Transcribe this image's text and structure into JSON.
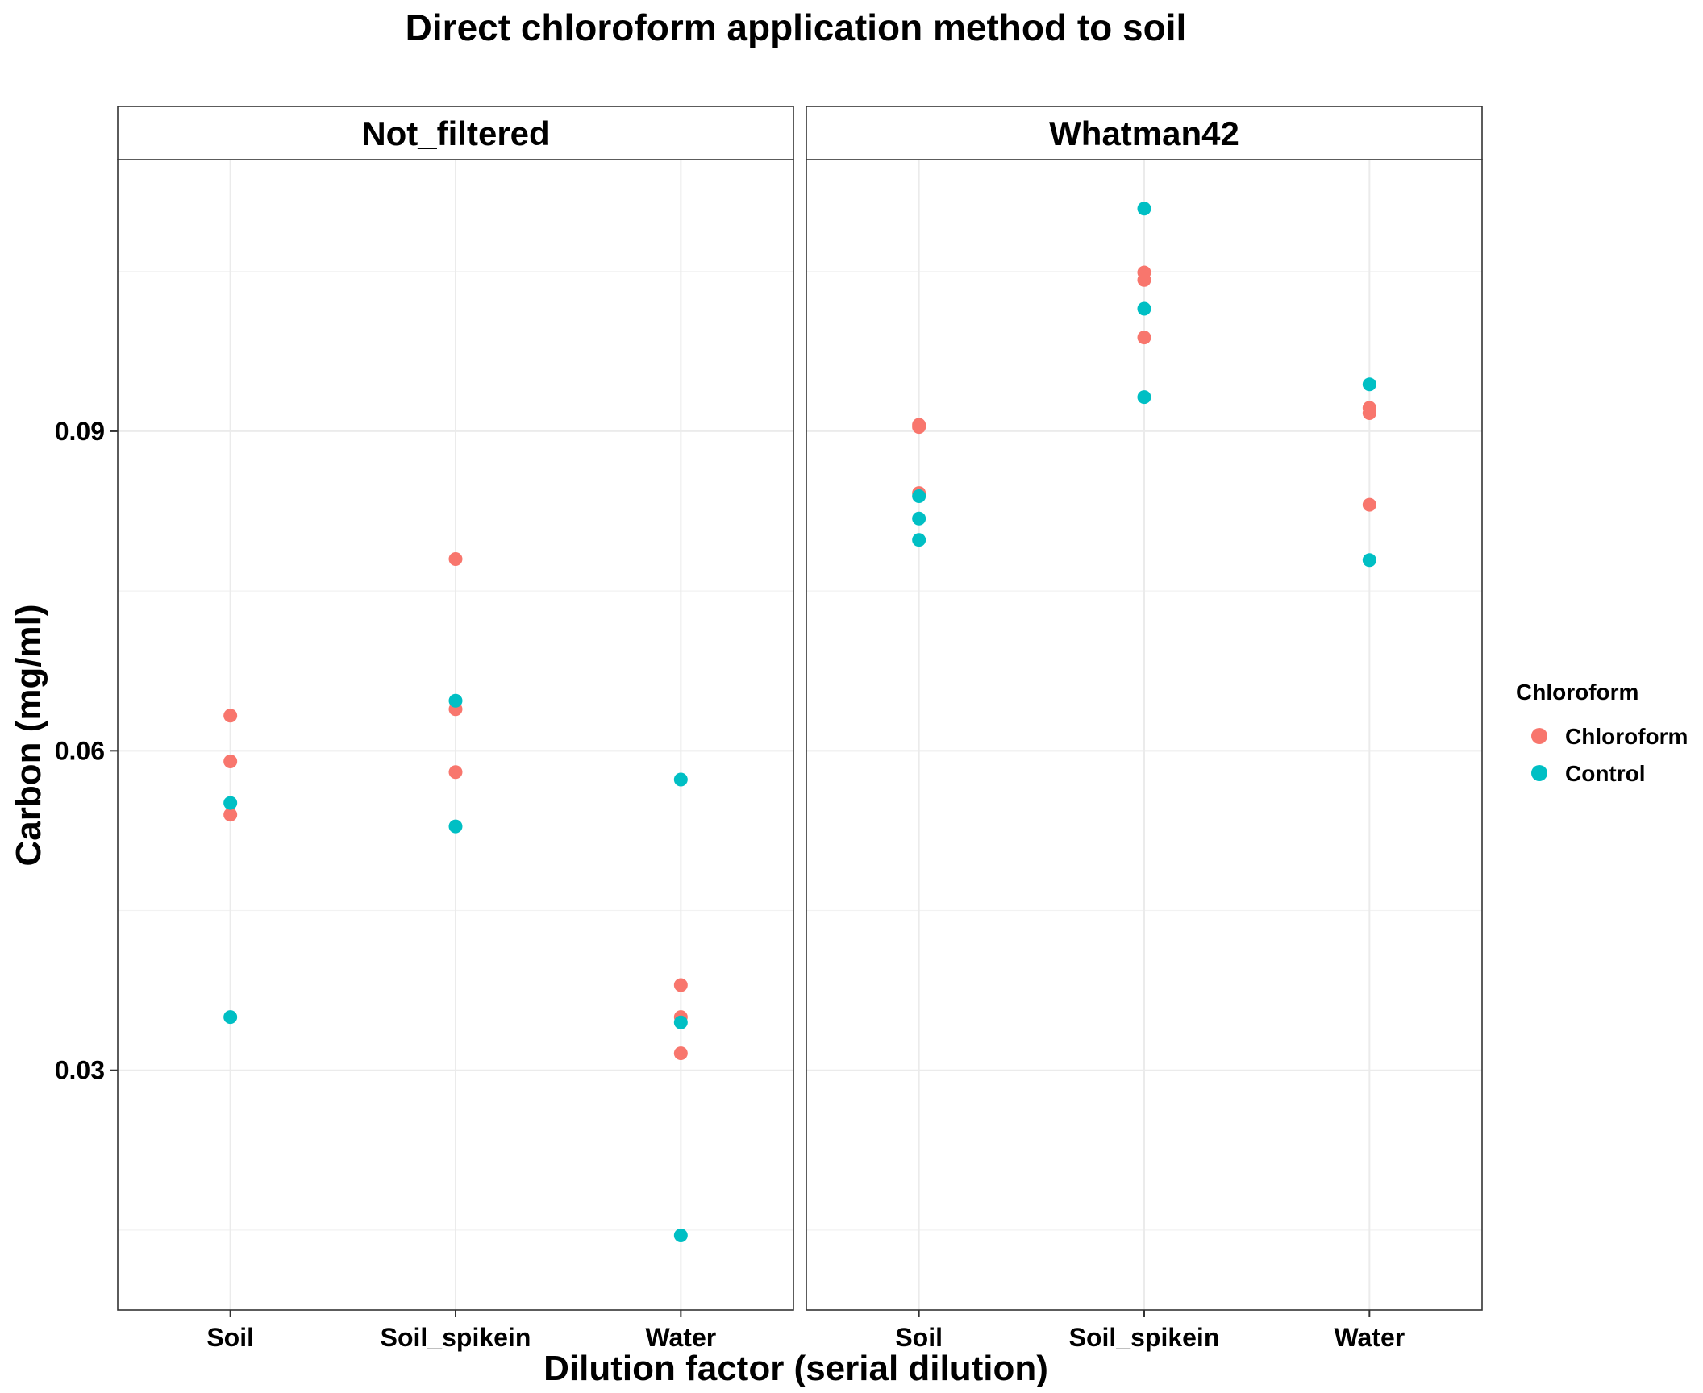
{
  "chart_data": {
    "type": "scatter",
    "title": "Direct chloroform application method to soil",
    "xlabel": "Dilution factor (serial dilution)",
    "ylabel": "Carbon (mg/ml)",
    "categories": [
      "Soil",
      "Soil_spikein",
      "Water"
    ],
    "y_ticks": [
      0.03,
      0.06,
      0.09
    ],
    "y_tick_labels": [
      "0.03",
      "0.06",
      "0.09"
    ],
    "ylim": [
      0.0075,
      0.1155
    ],
    "grid": true,
    "legend": {
      "title": "Chloroform",
      "position": "right",
      "entries": [
        {
          "name": "Chloroform",
          "color": "#F8766D"
        },
        {
          "name": "Control",
          "color": "#00BFC4"
        }
      ]
    },
    "panels": [
      {
        "name": "Not_filtered",
        "series": [
          {
            "name": "Chloroform",
            "points": [
              {
                "x": "Soil",
                "y": 0.0633
              },
              {
                "x": "Soil",
                "y": 0.059
              },
              {
                "x": "Soil",
                "y": 0.054
              },
              {
                "x": "Soil_spikein",
                "y": 0.078
              },
              {
                "x": "Soil_spikein",
                "y": 0.0639
              },
              {
                "x": "Soil_spikein",
                "y": 0.058
              },
              {
                "x": "Water",
                "y": 0.038
              },
              {
                "x": "Water",
                "y": 0.035
              },
              {
                "x": "Water",
                "y": 0.0316
              }
            ]
          },
          {
            "name": "Control",
            "points": [
              {
                "x": "Soil",
                "y": 0.0551
              },
              {
                "x": "Soil",
                "y": 0.035
              },
              {
                "x": "Soil_spikein",
                "y": 0.0647
              },
              {
                "x": "Soil_spikein",
                "y": 0.0529
              },
              {
                "x": "Water",
                "y": 0.0573
              },
              {
                "x": "Water",
                "y": 0.0345
              },
              {
                "x": "Water",
                "y": 0.0145
              }
            ]
          }
        ]
      },
      {
        "name": "Whatman42",
        "series": [
          {
            "name": "Chloroform",
            "points": [
              {
                "x": "Soil",
                "y": 0.0906
              },
              {
                "x": "Soil",
                "y": 0.0904
              },
              {
                "x": "Soil",
                "y": 0.0842
              },
              {
                "x": "Soil_spikein",
                "y": 0.1049
              },
              {
                "x": "Soil_spikein",
                "y": 0.1042
              },
              {
                "x": "Soil_spikein",
                "y": 0.0988
              },
              {
                "x": "Water",
                "y": 0.0922
              },
              {
                "x": "Water",
                "y": 0.0917
              },
              {
                "x": "Water",
                "y": 0.0831
              }
            ]
          },
          {
            "name": "Control",
            "points": [
              {
                "x": "Soil",
                "y": 0.0839
              },
              {
                "x": "Soil",
                "y": 0.0818
              },
              {
                "x": "Soil",
                "y": 0.0798
              },
              {
                "x": "Soil_spikein",
                "y": 0.1109
              },
              {
                "x": "Soil_spikein",
                "y": 0.1015
              },
              {
                "x": "Soil_spikein",
                "y": 0.0932
              },
              {
                "x": "Water",
                "y": 0.0944
              },
              {
                "x": "Water",
                "y": 0.0779
              }
            ]
          }
        ]
      }
    ]
  }
}
